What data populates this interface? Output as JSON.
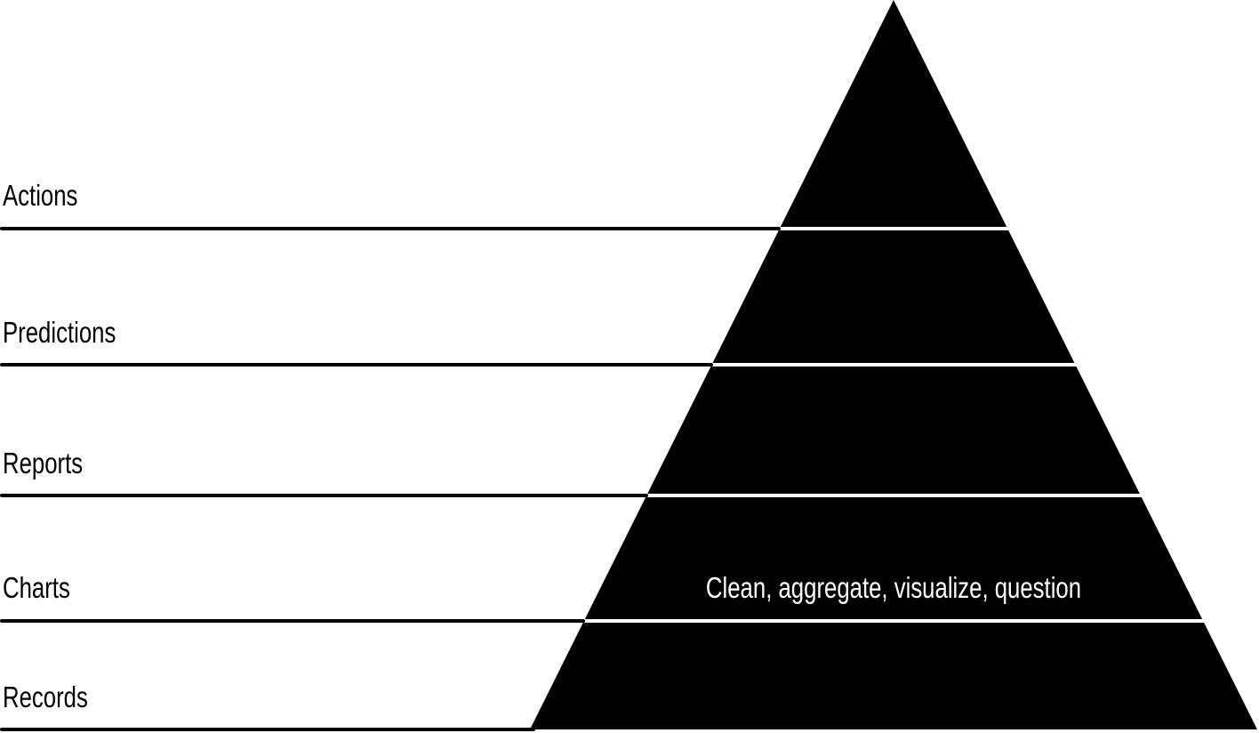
{
  "pyramid": {
    "levels": [
      {
        "label": "Actions"
      },
      {
        "label": "Predictions"
      },
      {
        "label": "Reports"
      },
      {
        "label": "Charts",
        "band_text": "Clean, aggregate, visualize, question"
      },
      {
        "label": "Records"
      }
    ],
    "colors": {
      "fill": "#000000",
      "separator": "#ffffff",
      "text": "#000000",
      "band_text": "#ffffff"
    }
  }
}
